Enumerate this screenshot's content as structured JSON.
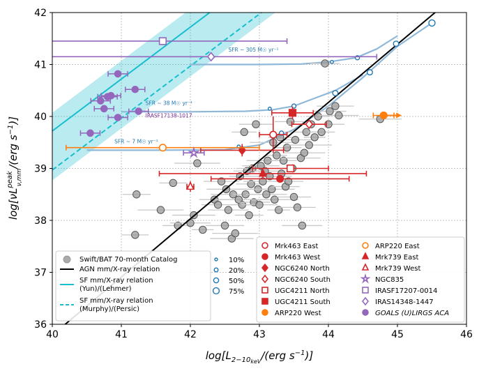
{
  "chart_data": {
    "type": "scatter",
    "xlabel": "log[L_{2-10 keV} / (erg s^{-1})]",
    "ylabel": "log[νL^{peak}_{ν,mm} / (erg s^{-1})]",
    "xlim": [
      40,
      46
    ],
    "ylim": [
      36,
      42
    ],
    "xticks": [
      "40",
      "41",
      "42",
      "43",
      "44",
      "45",
      "46"
    ],
    "yticks": [
      "36",
      "37",
      "38",
      "39",
      "40",
      "41",
      "42"
    ],
    "grid": true,
    "relations": {
      "agn": {
        "name": "AGN mm/X-ray relation",
        "slope": 1.12,
        "intercept_at_x42": 38.03,
        "color": "#000000"
      },
      "sf_lehmer": {
        "name": "SF mm/X-ray relation (Yun)/(Lehmer)",
        "slope": 1.0,
        "y_at_x40": 39.72,
        "color": "#17becf"
      },
      "sf_murphy": {
        "name": "SF mm/X-ray relation (Murphy)/(Persic)",
        "slope": 1.0,
        "y_at_x40": 38.97,
        "color": "#17becf"
      }
    },
    "sfr_tracks": [
      {
        "label": "SFR ~ 7 M☉ yr⁻¹",
        "points": [
          [
            40.5,
            39.35
          ],
          [
            41.5,
            39.35
          ],
          [
            42.5,
            39.36
          ],
          [
            43.0,
            39.45
          ],
          [
            43.5,
            39.75
          ],
          [
            44.0,
            40.2
          ],
          [
            44.5,
            40.75
          ],
          [
            45.0,
            41.35
          ],
          [
            45.5,
            41.8
          ]
        ]
      },
      {
        "label": "SFR ~ 38 M☉ yr⁻¹",
        "points": [
          [
            41.0,
            40.09
          ],
          [
            42.0,
            40.09
          ],
          [
            42.8,
            40.1
          ],
          [
            43.2,
            40.13
          ],
          [
            43.5,
            40.2
          ],
          [
            43.8,
            40.35
          ],
          [
            44.1,
            40.5
          ],
          [
            44.5,
            40.8
          ]
        ]
      },
      {
        "label": "SFR ~ 305 M☉ yr⁻¹",
        "points": [
          [
            42.0,
            41.0
          ],
          [
            43.0,
            41.0
          ],
          [
            43.6,
            41.01
          ],
          [
            44.0,
            41.05
          ],
          [
            44.4,
            41.13
          ],
          [
            44.7,
            41.3
          ],
          [
            45.0,
            41.55
          ]
        ]
      }
    ],
    "sfr_markers": [
      {
        "x": 43.15,
        "y": 40.15,
        "pct": "10%"
      },
      {
        "x": 43.5,
        "y": 40.2,
        "pct": "20%"
      },
      {
        "x": 44.1,
        "y": 40.45,
        "pct": "50%"
      },
      {
        "x": 42.7,
        "y": 39.42,
        "pct": "10%"
      },
      {
        "x": 43.32,
        "y": 39.68,
        "pct": "20%"
      },
      {
        "x": 44.6,
        "y": 40.85,
        "pct": "50%"
      },
      {
        "x": 45.5,
        "y": 41.8,
        "pct": "75%"
      },
      {
        "x": 44.05,
        "y": 41.05,
        "pct": "10%"
      },
      {
        "x": 44.42,
        "y": 41.13,
        "pct": "20%"
      },
      {
        "x": 44.98,
        "y": 41.4,
        "pct": "50%"
      }
    ],
    "bat_catalog": [
      [
        41.2,
        37.72
      ],
      [
        41.22,
        38.5
      ],
      [
        41.57,
        38.2
      ],
      [
        41.75,
        38.72
      ],
      [
        41.82,
        37.9
      ],
      [
        42.0,
        37.95
      ],
      [
        42.05,
        38.1
      ],
      [
        42.1,
        39.1
      ],
      [
        42.18,
        37.82
      ],
      [
        42.35,
        38.4
      ],
      [
        42.4,
        38.3
      ],
      [
        42.45,
        38.75
      ],
      [
        42.5,
        37.9
      ],
      [
        42.52,
        38.6
      ],
      [
        42.55,
        38.2
      ],
      [
        42.6,
        37.65
      ],
      [
        42.62,
        38.5
      ],
      [
        42.65,
        37.75
      ],
      [
        42.7,
        38.4
      ],
      [
        42.72,
        38.85
      ],
      [
        42.75,
        38.3
      ],
      [
        42.78,
        39.7
      ],
      [
        42.8,
        38.5
      ],
      [
        42.82,
        38.95
      ],
      [
        42.85,
        38.1
      ],
      [
        42.88,
        38.7
      ],
      [
        42.9,
        39.0
      ],
      [
        42.92,
        38.35
      ],
      [
        42.95,
        39.85
      ],
      [
        42.98,
        38.6
      ],
      [
        43.0,
        38.3
      ],
      [
        43.02,
        39.05
      ],
      [
        43.05,
        38.75
      ],
      [
        43.08,
        38.95
      ],
      [
        43.1,
        38.5
      ],
      [
        43.12,
        39.15
      ],
      [
        43.15,
        38.85
      ],
      [
        43.18,
        38.6
      ],
      [
        43.2,
        39.5
      ],
      [
        43.22,
        38.4
      ],
      [
        43.25,
        39.25
      ],
      [
        43.28,
        38.2
      ],
      [
        43.3,
        39.6
      ],
      [
        43.32,
        38.9
      ],
      [
        43.35,
        39.15
      ],
      [
        43.38,
        38.65
      ],
      [
        43.4,
        39.4
      ],
      [
        43.42,
        38.75
      ],
      [
        43.45,
        39.9
      ],
      [
        43.48,
        39.0
      ],
      [
        43.5,
        38.45
      ],
      [
        43.52,
        39.55
      ],
      [
        43.55,
        38.25
      ],
      [
        43.6,
        39.2
      ],
      [
        43.62,
        37.9
      ],
      [
        43.65,
        39.3
      ],
      [
        43.68,
        39.7
      ],
      [
        43.72,
        39.45
      ],
      [
        43.75,
        39.85
      ],
      [
        43.8,
        39.6
      ],
      [
        43.85,
        40.0
      ],
      [
        43.9,
        39.7
      ],
      [
        43.95,
        41.02
      ],
      [
        44.0,
        39.85
      ],
      [
        44.02,
        40.1
      ],
      [
        44.1,
        40.2
      ],
      [
        44.15,
        40.02
      ],
      [
        44.75,
        39.95
      ]
    ],
    "series": [
      {
        "name": "Mrk463 East",
        "x": 43.2,
        "y": 39.65,
        "color": "#d62728",
        "marker": "circle-open"
      },
      {
        "name": "Mrk463 West",
        "x": 43.3,
        "y": 38.8,
        "color": "#d62728",
        "marker": "circle"
      },
      {
        "name": "NGC6240 North",
        "x": 42.75,
        "y": 39.35,
        "color": "#d62728",
        "marker": "diamond"
      },
      {
        "name": "NGC6240 South",
        "x": 43.72,
        "y": 39.85,
        "color": "#d62728",
        "marker": "diamond-open"
      },
      {
        "name": "UGC4211 North",
        "x": 43.45,
        "y": 39.0,
        "color": "#d62728",
        "marker": "square-open"
      },
      {
        "name": "UGC4211 South",
        "x": 43.48,
        "y": 40.07,
        "color": "#d62728",
        "marker": "square"
      },
      {
        "name": "ARP220 West",
        "x": 44.8,
        "y": 40.02,
        "color": "#ff7f0e",
        "marker": "circle"
      },
      {
        "name": "ARP220 East",
        "x": 41.6,
        "y": 39.4,
        "color": "#ff7f0e",
        "marker": "circle-open"
      },
      {
        "name": "Mrk739 East",
        "x": 43.05,
        "y": 38.9,
        "color": "#d62728",
        "marker": "triangle"
      },
      {
        "name": "Mrk739 West",
        "x": 42.0,
        "y": 38.65,
        "color": "#d62728",
        "marker": "triangle-open"
      },
      {
        "name": "NGC835",
        "x": 42.05,
        "y": 39.3,
        "color": "#9467bd",
        "marker": "star-open"
      },
      {
        "name": "IRASF17207-0014",
        "x": 41.6,
        "y": 41.45,
        "color": "#9467bd",
        "marker": "square-open"
      },
      {
        "name": "IRAS14348-1447",
        "x": 42.3,
        "y": 41.15,
        "color": "#9467bd",
        "marker": "diamond-open"
      },
      {
        "name": "GOALS (U)LIRGS ACA",
        "color": "#9467bd",
        "marker": "circle",
        "points": [
          [
            40.55,
            39.68
          ],
          [
            40.95,
            40.82
          ],
          [
            40.8,
            40.38
          ],
          [
            40.85,
            40.4
          ],
          [
            40.7,
            40.3
          ],
          [
            40.75,
            40.15
          ],
          [
            40.95,
            39.98
          ],
          [
            41.2,
            40.52
          ],
          [
            41.25,
            40.1
          ]
        ]
      }
    ],
    "annotations": [
      {
        "text": "IRASF17138-1017",
        "x": 41.35,
        "y": 39.98,
        "color": "#7b3294"
      },
      {
        "text": "SFR ~ 7 M☉ yr⁻¹",
        "x": 40.9,
        "y": 39.48,
        "color": "#1f77b4"
      },
      {
        "text": "SFR ~ 38 M☉ yr⁻¹",
        "x": 41.35,
        "y": 40.22,
        "color": "#1f77b4"
      },
      {
        "text": "SFR ~ 305 M☉ yr⁻¹",
        "x": 42.55,
        "y": 41.25,
        "color": "#1f77b4"
      }
    ],
    "legend": {
      "left": [
        "Swift/BAT 70-month Catalog",
        "AGN mm/X-ray relation",
        "SF mm/X-ray relation",
        "(Yun)/(Lehmer)",
        "SF mm/X-ray relation",
        "(Murphy)/(Persic)"
      ],
      "mid": [
        "10%",
        "20%",
        "50%",
        "75%"
      ],
      "right": [
        "Mrk463 East",
        "Mrk463 West",
        "NGC6240 North",
        "NGC6240 South",
        "UGC4211 North",
        "UGC4211 South",
        "ARP220 West",
        "ARP220 East",
        "Mrk739 East",
        "Mrk739 West",
        "NGC835",
        "IRASF17207-0014",
        "IRAS14348-1447",
        "GOALS (U)LIRGS ACA"
      ],
      "placement": "lower-right"
    }
  }
}
